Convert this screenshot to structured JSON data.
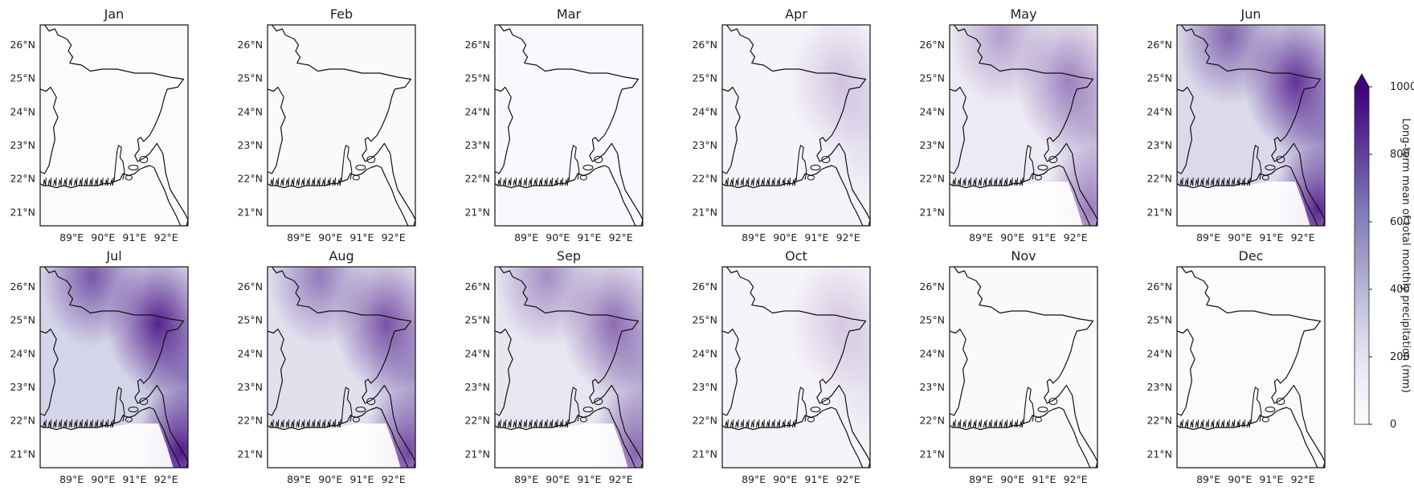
{
  "colorbar": {
    "label": "Long-term mean of total monthly precipitation (mm)",
    "min": 0,
    "max": 1000,
    "extend": "max",
    "ticks": [
      "0",
      "200",
      "400",
      "600",
      "800",
      "1000"
    ],
    "tick_values": [
      0,
      200,
      400,
      600,
      800,
      1000
    ],
    "colors": [
      "#fcfbfd",
      "#efedf5",
      "#dadaeb",
      "#bcbddc",
      "#9e9ac8",
      "#807dba",
      "#6a51a3",
      "#54278f",
      "#3f007d"
    ]
  },
  "axes": {
    "lat_ticks": [
      "26°N",
      "25°N",
      "24°N",
      "23°N",
      "22°N",
      "21°N"
    ],
    "lat_values": [
      26,
      25,
      24,
      23,
      22,
      21
    ],
    "lon_ticks": [
      "89°E",
      "90°E",
      "91°E",
      "92°E"
    ],
    "lon_values": [
      89,
      90,
      91,
      92
    ],
    "lat_range": [
      20.6,
      26.6
    ],
    "lon_range": [
      88.0,
      92.7
    ]
  },
  "months": [
    {
      "name": "Jan",
      "level": 0.02
    },
    {
      "name": "Feb",
      "level": 0.03
    },
    {
      "name": "Mar",
      "level": 0.05
    },
    {
      "name": "Apr",
      "level": 0.14
    },
    {
      "name": "May",
      "level": 0.32
    },
    {
      "name": "Jun",
      "level": 0.55
    },
    {
      "name": "Jul",
      "level": 0.6
    },
    {
      "name": "Aug",
      "level": 0.46
    },
    {
      "name": "Sep",
      "level": 0.38
    },
    {
      "name": "Oct",
      "level": 0.13
    },
    {
      "name": "Nov",
      "level": 0.03
    },
    {
      "name": "Dec",
      "level": 0.01
    }
  ]
}
